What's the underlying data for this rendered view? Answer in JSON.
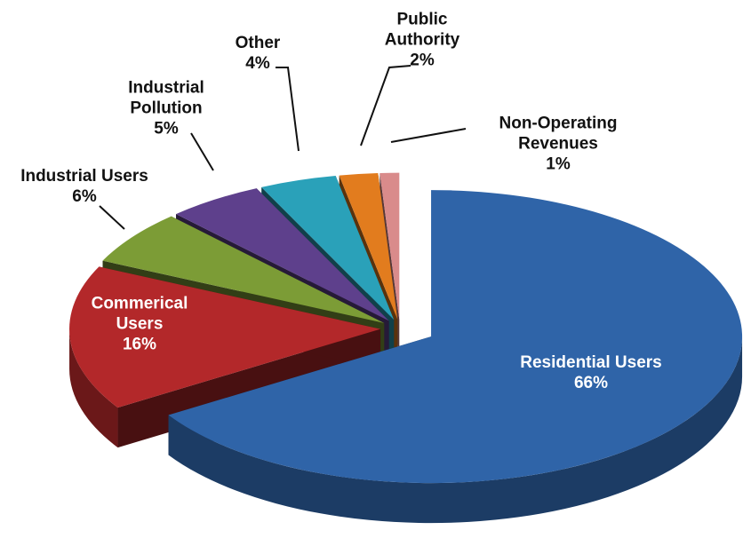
{
  "chart_data": {
    "type": "pie",
    "categories": [
      "Residential Users",
      "Commerical Users",
      "Industrial Users",
      "Industrial Pollution",
      "Other",
      "Public Authority",
      "Non-Operating Revenues"
    ],
    "values": [
      66,
      16,
      6,
      5,
      4,
      2,
      1
    ],
    "value_labels": [
      "66%",
      "16%",
      "6%",
      "5%",
      "4%",
      "2%",
      "1%"
    ],
    "colors": [
      "#2f64a8",
      "#b3282a",
      "#7c9c36",
      "#5e408c",
      "#2aa1b9",
      "#e27c1e",
      "#d98b8b"
    ]
  }
}
